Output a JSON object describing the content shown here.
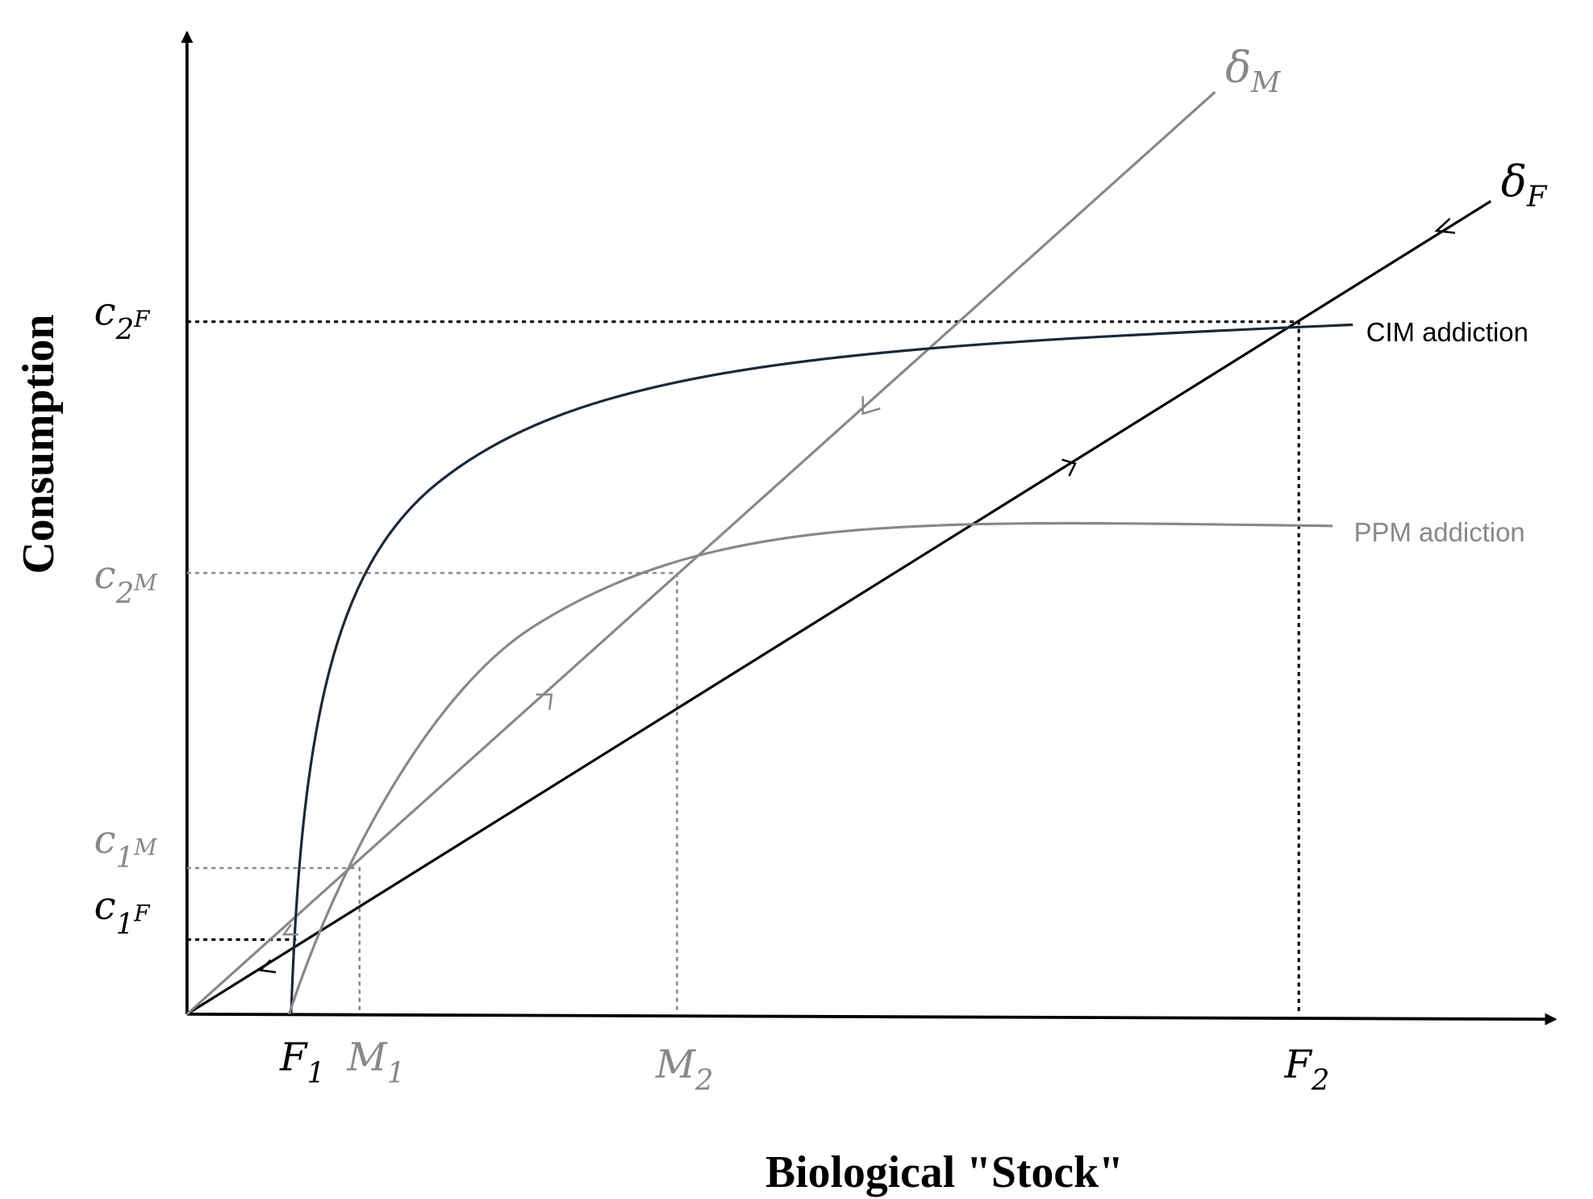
{
  "axes": {
    "y_label": "Consumption",
    "x_label": "Biological \"Stock\""
  },
  "curves": {
    "delta_m": {
      "base": "δ",
      "sub": "M"
    },
    "delta_f": {
      "base": "δ",
      "sub": "F"
    },
    "cim": "CIM addiction",
    "ppm": "PPM addiction"
  },
  "y_ticks": {
    "c2f": {
      "base": "c",
      "sub": "2",
      "sup": "F"
    },
    "c2m": {
      "base": "c",
      "sub": "2",
      "sup": "M"
    },
    "c1m": {
      "base": "c",
      "sub": "1",
      "sup": "M"
    },
    "c1f": {
      "base": "c",
      "sub": "1",
      "sup": "F"
    }
  },
  "x_ticks": {
    "f1": {
      "base": "F",
      "sub": "1"
    },
    "m1": {
      "base": "M",
      "sub": "1"
    },
    "m2": {
      "base": "M",
      "sub": "2"
    },
    "f2": {
      "base": "F",
      "sub": "2"
    }
  }
}
